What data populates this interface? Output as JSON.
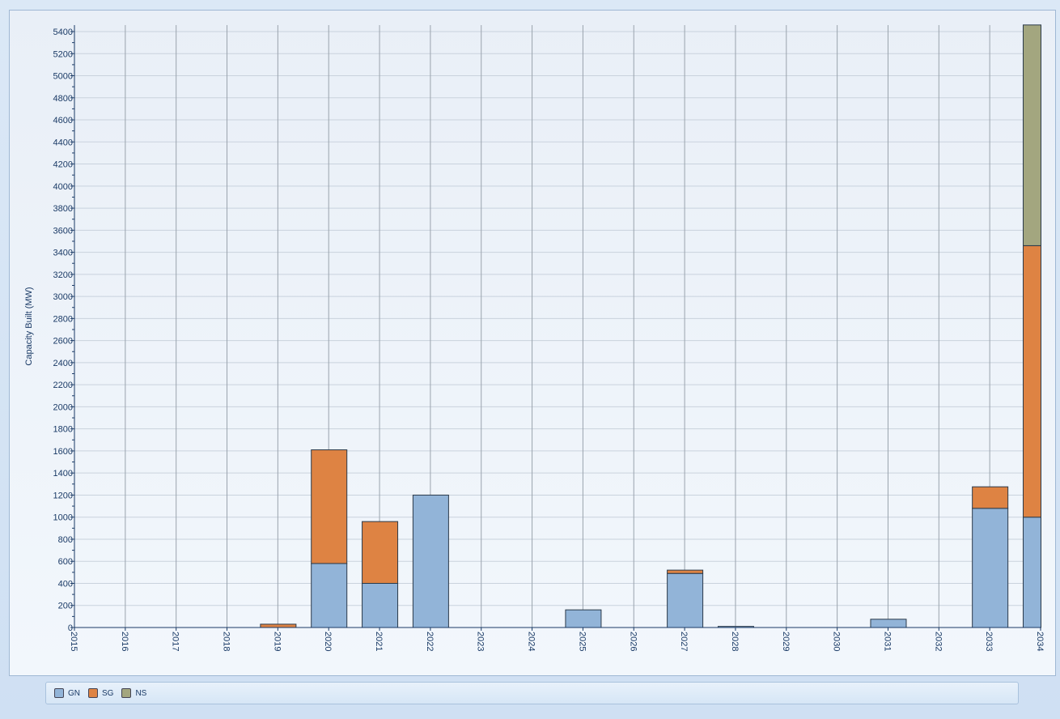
{
  "chart_data": {
    "type": "bar",
    "stacked": true,
    "ylabel": "Capacity Built (MW)",
    "xlabel": "",
    "ylim": [
      0,
      5400
    ],
    "ytick_step": 200,
    "grid": "horizontal and vertical",
    "legend_position": "bottom",
    "categories": [
      "2015",
      "2016",
      "2017",
      "2018",
      "2019",
      "2020",
      "2021",
      "2022",
      "2023",
      "2024",
      "2025",
      "2026",
      "2027",
      "2028",
      "2029",
      "2030",
      "2031",
      "2032",
      "2033",
      "2034"
    ],
    "series": [
      {
        "name": "GN",
        "color": "#92b4d8",
        "values": [
          0,
          0,
          0,
          0,
          0,
          580,
          400,
          1200,
          0,
          0,
          160,
          0,
          490,
          10,
          0,
          0,
          75,
          0,
          1080,
          1000
        ]
      },
      {
        "name": "SG",
        "color": "#de8343",
        "values": [
          0,
          0,
          0,
          0,
          30,
          1030,
          560,
          0,
          0,
          0,
          0,
          0,
          30,
          0,
          0,
          0,
          0,
          0,
          195,
          2460
        ]
      },
      {
        "name": "NS",
        "color": "#a3a67f",
        "values": [
          0,
          0,
          0,
          0,
          0,
          0,
          0,
          0,
          0,
          0,
          0,
          0,
          0,
          0,
          0,
          0,
          0,
          0,
          0,
          2000
        ]
      }
    ]
  }
}
